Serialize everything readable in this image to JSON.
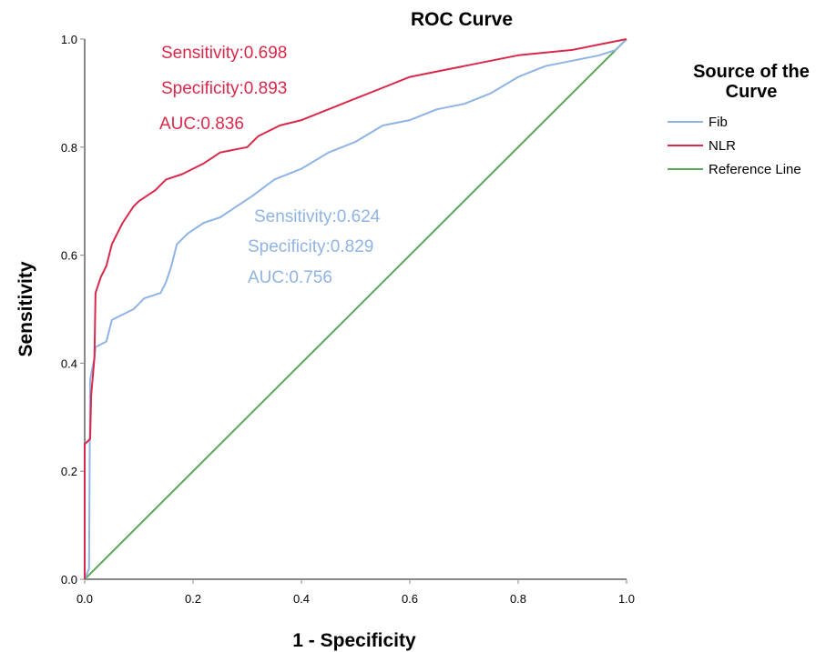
{
  "chart_data": {
    "type": "line",
    "title": "ROC Curve",
    "xlabel": "1 - Specificity",
    "ylabel": "Sensitivity",
    "xlim": [
      0,
      1
    ],
    "ylim": [
      0,
      1
    ],
    "x_ticks": [
      "0.0",
      "0.2",
      "0.4",
      "0.6",
      "0.8",
      "1.0"
    ],
    "y_ticks": [
      "0.0",
      "0.2",
      "0.4",
      "0.6",
      "0.8",
      "1.0"
    ],
    "grid": false,
    "legend": {
      "title_line1": "Source of the",
      "title_line2": "Curve",
      "position": "right",
      "entries": [
        "Fib",
        "NLR",
        "Reference Line"
      ]
    },
    "series": [
      {
        "name": "Fib",
        "color": "#8fb4e4",
        "points": [
          [
            0,
            0
          ],
          [
            0.008,
            0.02
          ],
          [
            0.01,
            0.37
          ],
          [
            0.018,
            0.41
          ],
          [
            0.02,
            0.43
          ],
          [
            0.04,
            0.44
          ],
          [
            0.05,
            0.48
          ],
          [
            0.07,
            0.49
          ],
          [
            0.09,
            0.5
          ],
          [
            0.1,
            0.51
          ],
          [
            0.11,
            0.52
          ],
          [
            0.14,
            0.53
          ],
          [
            0.15,
            0.55
          ],
          [
            0.16,
            0.58
          ],
          [
            0.17,
            0.62
          ],
          [
            0.19,
            0.64
          ],
          [
            0.22,
            0.66
          ],
          [
            0.25,
            0.67
          ],
          [
            0.28,
            0.69
          ],
          [
            0.31,
            0.71
          ],
          [
            0.35,
            0.74
          ],
          [
            0.4,
            0.76
          ],
          [
            0.45,
            0.79
          ],
          [
            0.5,
            0.81
          ],
          [
            0.55,
            0.84
          ],
          [
            0.6,
            0.85
          ],
          [
            0.65,
            0.87
          ],
          [
            0.7,
            0.88
          ],
          [
            0.75,
            0.9
          ],
          [
            0.8,
            0.93
          ],
          [
            0.85,
            0.95
          ],
          [
            0.9,
            0.96
          ],
          [
            0.95,
            0.97
          ],
          [
            0.98,
            0.98
          ],
          [
            1.0,
            1.0
          ]
        ]
      },
      {
        "name": "NLR",
        "color": "#d9294b",
        "points": [
          [
            0,
            0
          ],
          [
            0,
            0.25
          ],
          [
            0.01,
            0.26
          ],
          [
            0.012,
            0.34
          ],
          [
            0.018,
            0.41
          ],
          [
            0.02,
            0.53
          ],
          [
            0.03,
            0.56
          ],
          [
            0.04,
            0.58
          ],
          [
            0.05,
            0.62
          ],
          [
            0.06,
            0.64
          ],
          [
            0.07,
            0.66
          ],
          [
            0.09,
            0.69
          ],
          [
            0.1,
            0.7
          ],
          [
            0.13,
            0.72
          ],
          [
            0.15,
            0.74
          ],
          [
            0.18,
            0.75
          ],
          [
            0.22,
            0.77
          ],
          [
            0.25,
            0.79
          ],
          [
            0.3,
            0.8
          ],
          [
            0.32,
            0.82
          ],
          [
            0.36,
            0.84
          ],
          [
            0.4,
            0.85
          ],
          [
            0.45,
            0.87
          ],
          [
            0.5,
            0.89
          ],
          [
            0.55,
            0.91
          ],
          [
            0.6,
            0.93
          ],
          [
            0.65,
            0.94
          ],
          [
            0.7,
            0.95
          ],
          [
            0.8,
            0.97
          ],
          [
            0.9,
            0.98
          ],
          [
            0.95,
            0.99
          ],
          [
            1.0,
            1.0
          ]
        ]
      },
      {
        "name": "Reference Line",
        "color": "#5aa65a",
        "points": [
          [
            0,
            0
          ],
          [
            1,
            1
          ]
        ]
      }
    ],
    "annotations": [
      {
        "name": "nlr-sensitivity",
        "text": "Sensitivity:0.698",
        "color": "#d9294b"
      },
      {
        "name": "nlr-specificity",
        "text": "Specificity:0.893",
        "color": "#d9294b"
      },
      {
        "name": "nlr-auc",
        "text": "AUC:0.836",
        "color": "#d9294b"
      },
      {
        "name": "fib-sensitivity",
        "text": "Sensitivity:0.624",
        "color": "#8fb4e4"
      },
      {
        "name": "fib-specificity",
        "text": "Specificity:0.829",
        "color": "#8fb4e4"
      },
      {
        "name": "fib-auc",
        "text": "AUC:0.756",
        "color": "#8fb4e4"
      }
    ]
  }
}
